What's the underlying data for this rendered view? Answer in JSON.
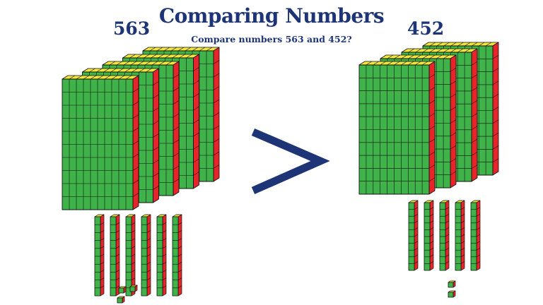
{
  "title": "Comparing Numbers",
  "subtitle": "Compare numbers 563 and 452?",
  "left_number": "563",
  "right_number": "452",
  "comparison_symbol": ">",
  "colors": {
    "text": "#1d3577",
    "cube_face": "#3fb34a",
    "cube_top": "#f3e53a",
    "cube_side": "#e8242b",
    "outline": "#111111"
  },
  "left_blocks": {
    "hundreds": 5,
    "tens": 6,
    "ones": 3
  },
  "right_blocks": {
    "hundreds": 4,
    "tens": 5,
    "ones": 2
  }
}
